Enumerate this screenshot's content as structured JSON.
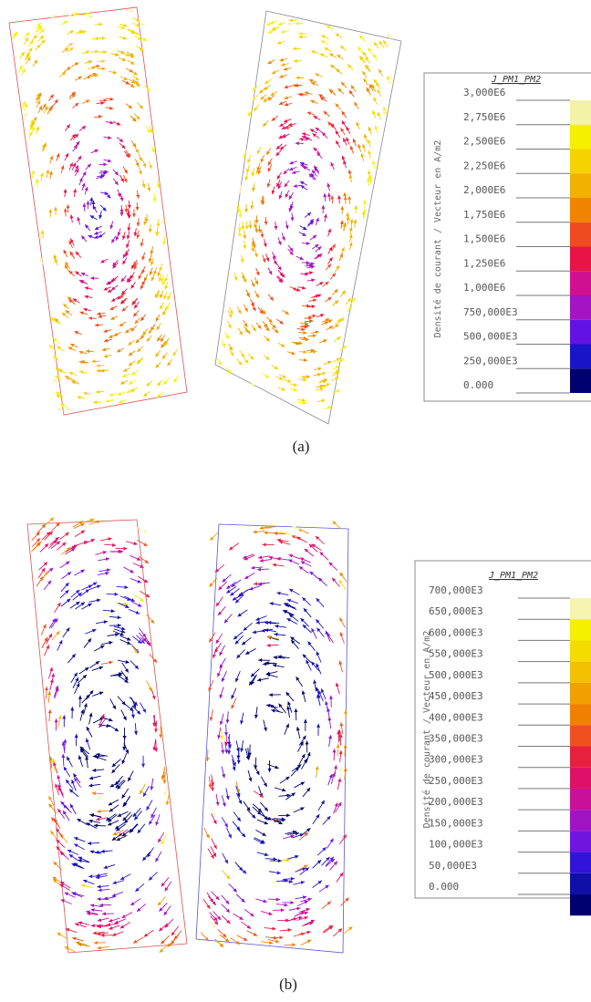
{
  "panels": [
    {
      "legend": {
        "title": "J_PM1_PM2",
        "axis_label": "Densité de courant / Vecteur en A/m2",
        "ticks": [
          "3,000E6",
          "2,750E6",
          "2,500E6",
          "2,250E6",
          "2,000E6",
          "1,750E6",
          "1,500E6",
          "1,250E6",
          "1,000E6",
          "750,000E3",
          "500,000E3",
          "250,000E3",
          "0.000"
        ],
        "colors": [
          "#f3f3a8",
          "#f5f000",
          "#f5d200",
          "#f2b000",
          "#f08400",
          "#f04a20",
          "#e81448",
          "#d01090",
          "#a414c4",
          "#6412e4",
          "#1a14c8",
          "#000070"
        ]
      },
      "caption": "(a)"
    },
    {
      "legend": {
        "title": "J_PM1_PM2",
        "axis_label": "Densité de courant / Vecteur en A/m2",
        "ticks": [
          "700,000E3",
          "650,000E3",
          "600,000E3",
          "550,000E3",
          "500,000E3",
          "450,000E3",
          "400,000E3",
          "350,000E3",
          "300,000E3",
          "250,000E3",
          "200,000E3",
          "150,000E3",
          "100,000E3",
          "50,000E3",
          "0.000"
        ],
        "colors": [
          "#f5f5b0",
          "#f5f000",
          "#f5dc00",
          "#f2c000",
          "#f0a000",
          "#f08000",
          "#f05020",
          "#e82040",
          "#e01068",
          "#c81098",
          "#a014c4",
          "#7014e0",
          "#3014d8",
          "#1010a8",
          "#000070"
        ]
      },
      "caption": "(b)"
    }
  ]
}
